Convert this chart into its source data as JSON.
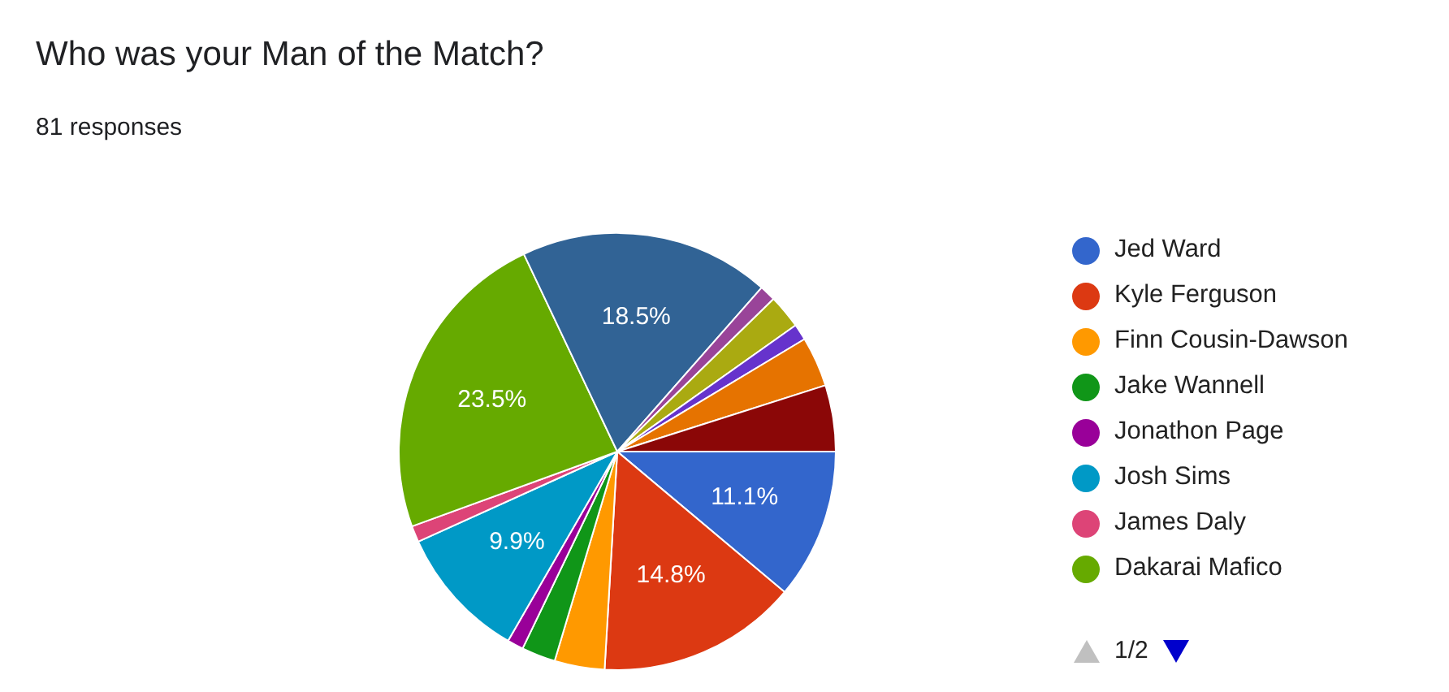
{
  "chart_data": {
    "type": "pie",
    "title": "Who was your Man of the Match?",
    "subtitle": "81 responses",
    "categories": [
      "Jed Ward",
      "Kyle Ferguson",
      "Finn Cousin-Dawson",
      "Jake Wannell",
      "Jonathon Page",
      "Josh Sims",
      "James Daly",
      "Dakarai Mafico",
      null,
      null,
      null,
      null,
      null,
      null
    ],
    "values": [
      11.1,
      14.8,
      3.7,
      2.5,
      1.2,
      9.9,
      1.2,
      23.5,
      18.5,
      1.2,
      2.5,
      1.2,
      3.7,
      4.9
    ],
    "colors": [
      "#3366cc",
      "#dc3912",
      "#ff9900",
      "#109618",
      "#990099",
      "#0099c6",
      "#dd4477",
      "#66aa00",
      "#316395",
      "#994499",
      "#aaaa11",
      "#6633cc",
      "#e67300",
      "#8b0707"
    ],
    "value_labels": [
      "11.1%",
      "14.8%",
      null,
      null,
      null,
      "9.9%",
      null,
      "23.5%",
      "18.5%",
      null,
      null,
      null,
      null,
      null
    ],
    "legend": "right",
    "annotations": [
      "1/2"
    ]
  }
}
